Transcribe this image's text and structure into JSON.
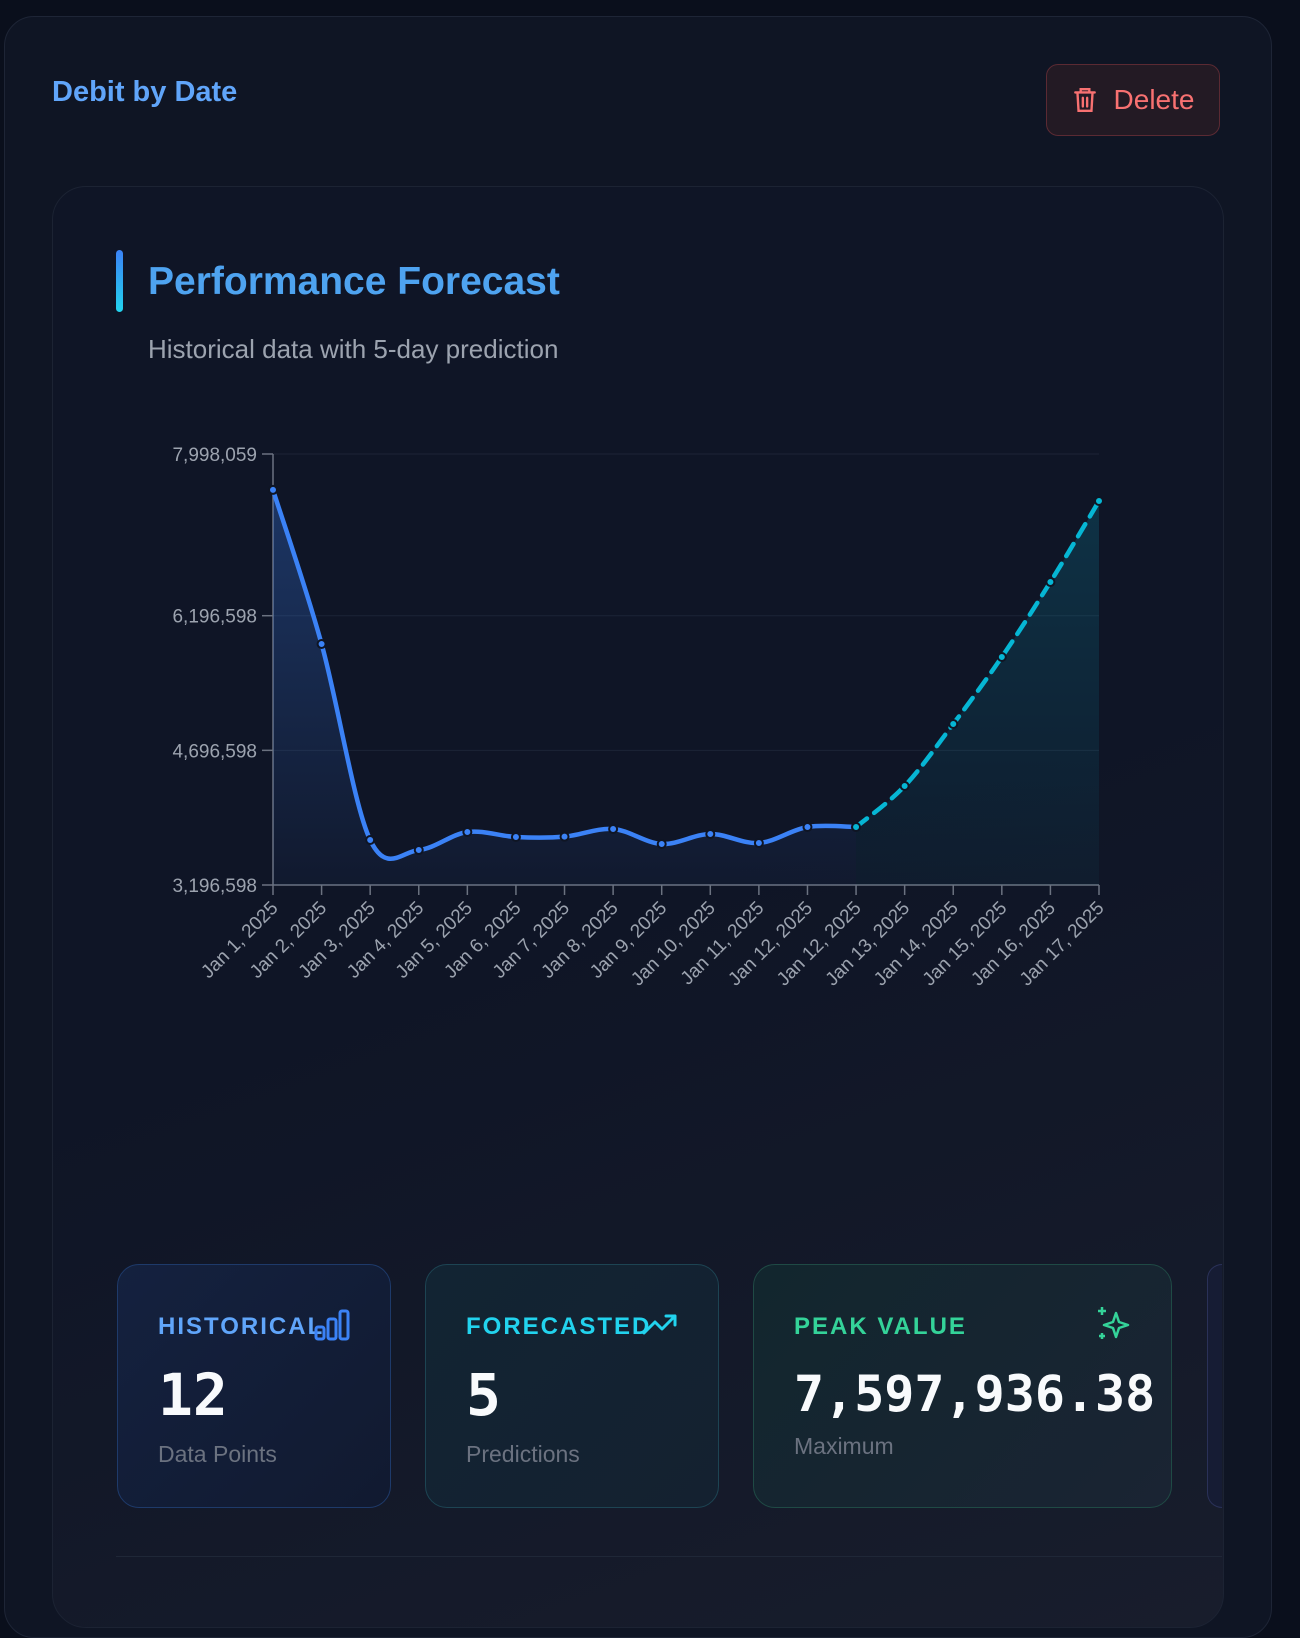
{
  "header": {
    "title": "Debit by Date",
    "action": "Delete"
  },
  "chart_card": {
    "title": "Performance Forecast",
    "subtitle": "Historical data with 5-day prediction"
  },
  "chart_data": {
    "type": "line",
    "categories": [
      "Jan 1, 2025",
      "Jan 2, 2025",
      "Jan 3, 2025",
      "Jan 4, 2025",
      "Jan 5, 2025",
      "Jan 6, 2025",
      "Jan 7, 2025",
      "Jan 8, 2025",
      "Jan 9, 2025",
      "Jan 10, 2025",
      "Jan 11, 2025",
      "Jan 12, 2025",
      "Jan 12, 2025",
      "Jan 13, 2025",
      "Jan 14, 2025",
      "Jan 15, 2025",
      "Jan 16, 2025",
      "Jan 17, 2025"
    ],
    "series": [
      {
        "color": "#3b82f6",
        "dashed": false,
        "values": [
          7597936,
          5881400,
          3697900,
          3586500,
          3787000,
          3731300,
          3735000,
          3820500,
          3653300,
          3764800,
          3664500,
          3842700,
          3842700,
          null,
          null,
          null,
          null,
          null
        ]
      },
      {
        "color": "#06b6d4",
        "dashed": true,
        "values": [
          null,
          null,
          null,
          null,
          null,
          null,
          null,
          null,
          null,
          null,
          null,
          null,
          3842700,
          4299500,
          4990200,
          5736600,
          6572100,
          7474500
        ]
      }
    ],
    "ylim": [
      3196598,
      7998059
    ],
    "yticks": [
      {
        "value": 3196598,
        "label": "3,196,598"
      },
      {
        "value": 4696598,
        "label": "4,696,598"
      },
      {
        "value": 6196598,
        "label": "6,196,598"
      },
      {
        "value": 7998059,
        "label": "7,998,059"
      }
    ],
    "grid": true
  },
  "stats": [
    {
      "label": "HISTORICAL",
      "value": 12,
      "caption": "Data Points"
    },
    {
      "label": "FORECASTED",
      "value": 5,
      "caption": "Predictions"
    },
    {
      "label": "PEAK VALUE",
      "value": "7,597,936.38",
      "caption": "Maximum"
    }
  ]
}
